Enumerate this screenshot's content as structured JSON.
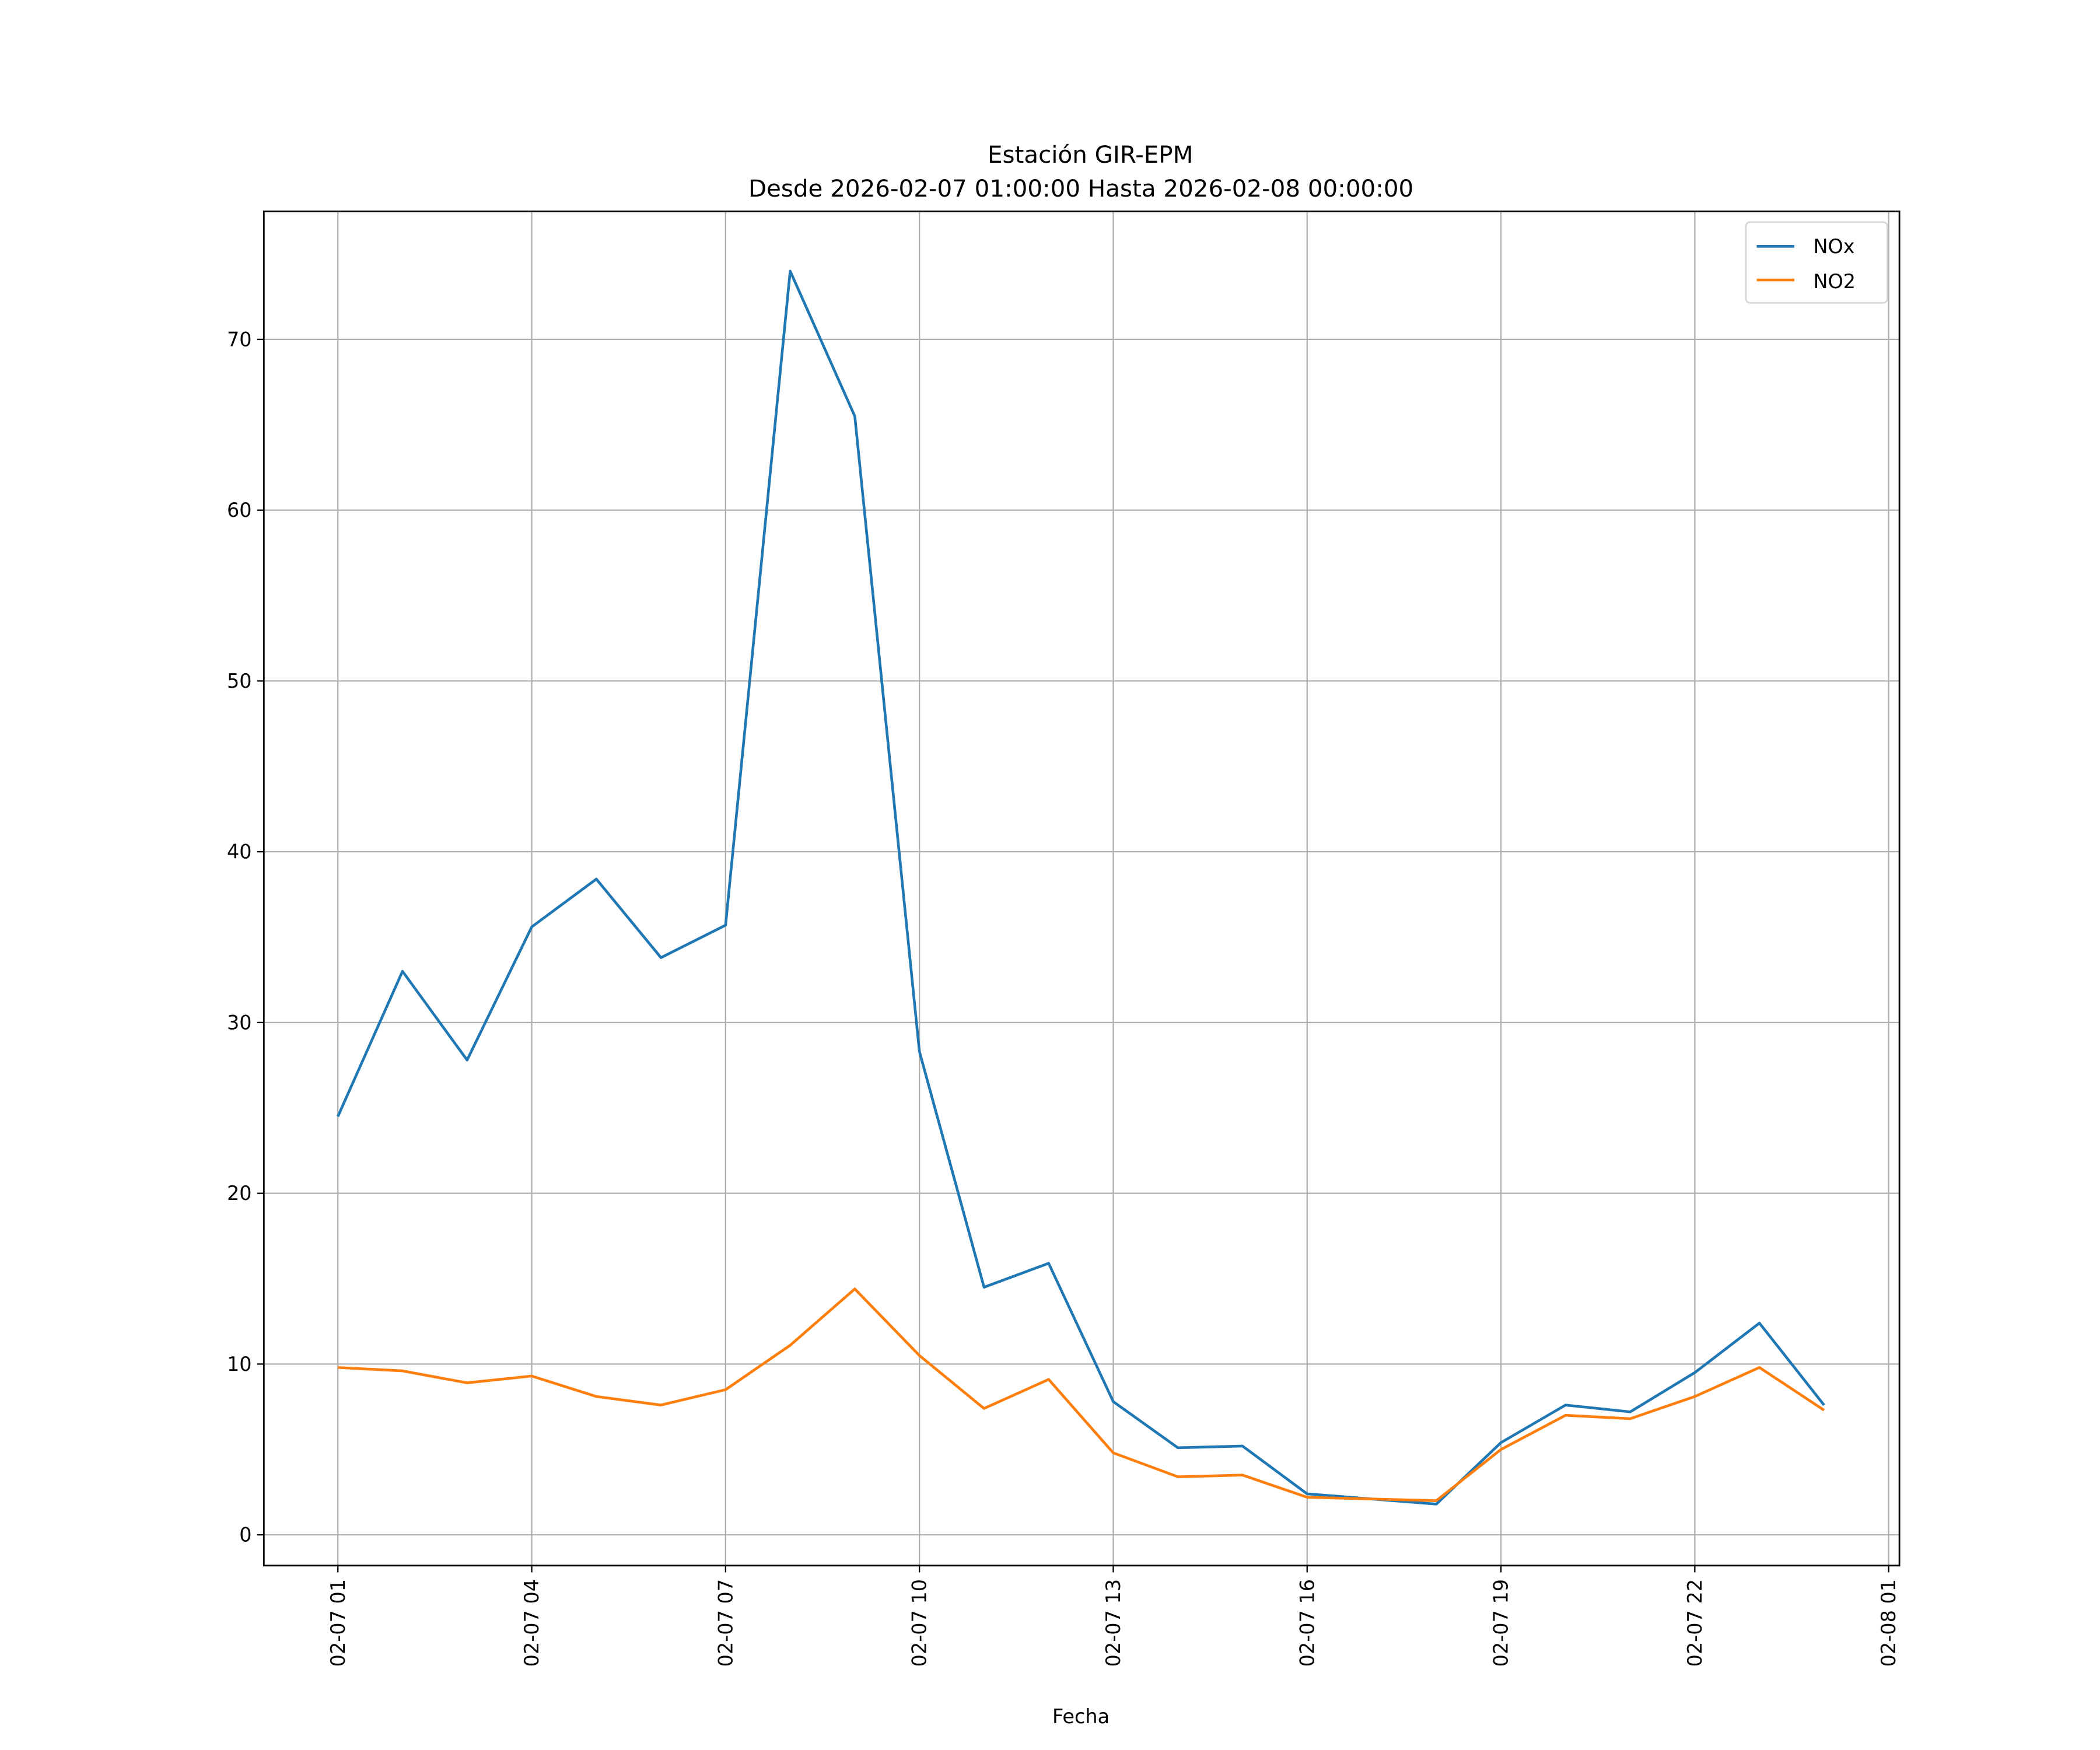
{
  "chart_data": {
    "type": "line",
    "title": "Estación GIR-EPM",
    "subtitle": "Desde 2026-02-07 01:00:00 Hasta 2026-02-08 00:00:00",
    "xlabel": "Fecha",
    "ylabel": "",
    "x": [
      "2026-02-07 01:00",
      "2026-02-07 02:00",
      "2026-02-07 03:00",
      "2026-02-07 04:00",
      "2026-02-07 05:00",
      "2026-02-07 06:00",
      "2026-02-07 07:00",
      "2026-02-07 08:00",
      "2026-02-07 09:00",
      "2026-02-07 10:00",
      "2026-02-07 11:00",
      "2026-02-07 12:00",
      "2026-02-07 13:00",
      "2026-02-07 14:00",
      "2026-02-07 15:00",
      "2026-02-07 16:00",
      "2026-02-07 17:00",
      "2026-02-07 18:00",
      "2026-02-07 19:00",
      "2026-02-07 20:00",
      "2026-02-07 21:00",
      "2026-02-07 22:00",
      "2026-02-07 23:00",
      "2026-02-08 00:00"
    ],
    "xticks": [
      "02-07 01",
      "02-07 04",
      "02-07 07",
      "02-07 10",
      "02-07 13",
      "02-07 16",
      "02-07 19",
      "02-07 22",
      "02-08 01"
    ],
    "yticks": [
      0,
      10,
      20,
      30,
      40,
      50,
      60,
      70
    ],
    "ylim": [
      -1.8,
      77.5
    ],
    "grid": true,
    "legend_placement": "top-right",
    "series": [
      {
        "name": "NOx",
        "color": "#1f77b4",
        "values": [
          24.5,
          33.0,
          27.8,
          35.6,
          38.4,
          33.8,
          35.7,
          74.0,
          65.5,
          28.3,
          14.5,
          15.9,
          7.8,
          5.1,
          5.2,
          2.4,
          2.1,
          1.8,
          5.4,
          7.6,
          7.2,
          9.5,
          12.4,
          7.6
        ]
      },
      {
        "name": "NO2",
        "color": "#ff7f0e",
        "values": [
          9.8,
          9.6,
          8.9,
          9.3,
          8.1,
          7.6,
          8.5,
          11.1,
          14.4,
          10.5,
          7.4,
          9.1,
          4.8,
          3.4,
          3.5,
          2.2,
          2.1,
          2.0,
          5.0,
          7.0,
          6.8,
          8.1,
          9.8,
          7.3
        ]
      }
    ]
  }
}
